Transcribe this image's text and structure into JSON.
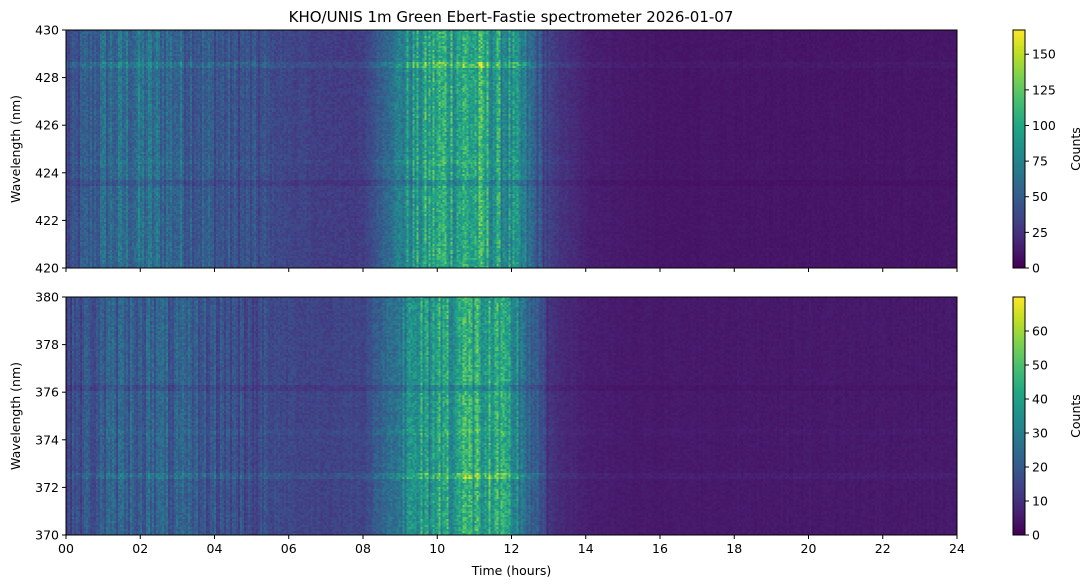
{
  "title": "KHO/UNIS 1m Green Ebert-Fastie spectrometer 2026-01-07",
  "colormap": "viridis",
  "chart_data": [
    {
      "type": "heatmap",
      "panel": "top",
      "title": "KHO/UNIS 1m Green Ebert-Fastie spectrometer 2026-01-07",
      "xlabel": "",
      "ylabel": "Wavelength (nm)",
      "xlim": [
        0,
        24
      ],
      "ylim": [
        420,
        430
      ],
      "xticks": [
        0,
        2,
        4,
        6,
        8,
        10,
        12,
        14,
        16,
        18,
        20,
        22,
        24
      ],
      "xtick_labels": [],
      "yticks": [
        420,
        422,
        424,
        426,
        428,
        430
      ],
      "ytick_labels": [
        "420",
        "422",
        "424",
        "426",
        "428",
        "430"
      ],
      "colorbar": {
        "label": "Counts",
        "range": [
          0,
          167
        ],
        "ticks": [
          0,
          25,
          50,
          75,
          100,
          125,
          150
        ],
        "tick_labels": [
          "0",
          "25",
          "50",
          "75",
          "100",
          "125",
          "150"
        ]
      },
      "emission_lines_nm": [
        428.6,
        423.6,
        424.5
      ],
      "time_profile": {
        "hours": [
          0,
          1,
          2,
          3,
          4,
          5,
          6,
          7,
          8,
          9,
          10,
          11,
          12,
          13,
          14,
          15,
          16,
          18,
          20,
          22,
          24
        ],
        "approx_counts": [
          35,
          55,
          60,
          55,
          45,
          40,
          35,
          30,
          30,
          75,
          100,
          100,
          80,
          30,
          15,
          12,
          10,
          10,
          10,
          10,
          10
        ]
      }
    },
    {
      "type": "heatmap",
      "panel": "bottom",
      "xlabel": "Time (hours)",
      "ylabel": "Wavelength (nm)",
      "xlim": [
        0,
        24
      ],
      "ylim": [
        370,
        380
      ],
      "xticks": [
        0,
        2,
        4,
        6,
        8,
        10,
        12,
        14,
        16,
        18,
        20,
        22,
        24
      ],
      "xtick_labels": [
        "00",
        "02",
        "04",
        "06",
        "08",
        "10",
        "12",
        "14",
        "16",
        "18",
        "20",
        "22",
        "24"
      ],
      "yticks": [
        370,
        372,
        374,
        376,
        378,
        380
      ],
      "ytick_labels": [
        "370",
        "372",
        "374",
        "376",
        "378",
        "380"
      ],
      "colorbar": {
        "label": "Counts",
        "range": [
          0,
          70
        ],
        "ticks": [
          0,
          10,
          20,
          30,
          40,
          50,
          60
        ],
        "tick_labels": [
          "0",
          "10",
          "20",
          "30",
          "40",
          "50",
          "60"
        ]
      },
      "emission_lines_nm": [
        372.5,
        376.2,
        374.4
      ],
      "time_profile": {
        "hours": [
          0,
          1,
          2,
          3,
          4,
          5,
          6,
          7,
          8,
          9,
          10,
          11,
          12,
          13,
          14,
          15,
          16,
          18,
          20,
          22,
          24
        ],
        "approx_counts": [
          15,
          20,
          22,
          20,
          18,
          16,
          15,
          14,
          15,
          30,
          40,
          42,
          35,
          10,
          6,
          5,
          5,
          5,
          5,
          5,
          5
        ]
      }
    }
  ]
}
